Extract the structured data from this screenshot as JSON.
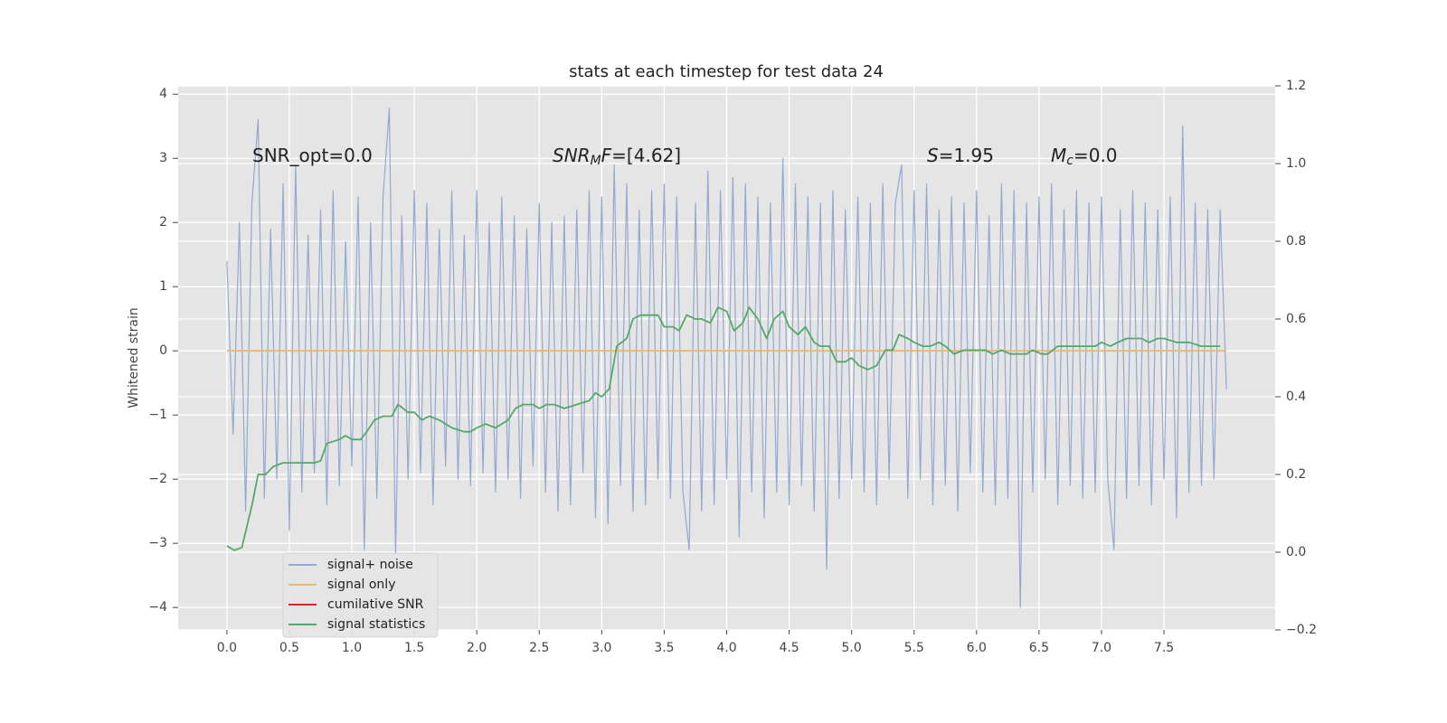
{
  "chart_data": {
    "type": "line",
    "title": "stats at each timestep for test data 24",
    "y_label": "Whitened strain",
    "xlim": [
      -0.39,
      8.39
    ],
    "ylim": [
      -4.35,
      4.13
    ],
    "y2lim": [
      -0.2,
      1.2
    ],
    "xticks": [
      {
        "value": 0,
        "label": "0.0"
      },
      0.5,
      {
        "value": 1,
        "label": "1.0"
      },
      1.5,
      {
        "value": 2,
        "label": "2.0"
      },
      2.5,
      {
        "value": 3,
        "label": "3.0"
      },
      3.5,
      {
        "value": 4,
        "label": "4.0"
      },
      4.5,
      {
        "value": 5,
        "label": "5.0"
      },
      5.5,
      {
        "value": 6,
        "label": "6.0"
      },
      6.5,
      {
        "value": 7,
        "label": "7.0"
      },
      7.5
    ],
    "yticks": [
      {
        "value": -4,
        "label": "−4"
      },
      {
        "value": -3,
        "label": "−3"
      },
      {
        "value": -2,
        "label": "−2"
      },
      {
        "value": -1,
        "label": "−1"
      },
      0,
      1,
      2,
      3,
      4
    ],
    "y2ticks": [
      {
        "value": -0.2,
        "label": "−0.2"
      },
      {
        "value": 0,
        "label": "0.0"
      },
      0.2,
      0.4,
      0.6,
      0.8,
      {
        "value": 1,
        "label": "1.0"
      },
      1.2
    ],
    "grid": true,
    "legend": "lower left",
    "annotations": [
      [
        {
          "text": "SNR_opt=0.0"
        }
      ],
      [
        {
          "text": "SNR",
          "style": "italic"
        },
        {
          "text": "M",
          "style": "italic-sub"
        },
        {
          "text": "F",
          "style": "italic"
        },
        {
          "text": "=[4.62]"
        }
      ],
      [
        {
          "text": "S",
          "style": "italic"
        },
        {
          "text": "=1.95"
        }
      ],
      [
        {
          "text": "M",
          "style": "italic"
        },
        {
          "text": "c",
          "style": "italic-sub"
        },
        {
          "text": "=0.0"
        }
      ]
    ],
    "series": [
      {
        "name": "signal+ noise",
        "color": "#93a9cf",
        "x": [
          0,
          0.05,
          0.1,
          0.15,
          0.2,
          0.25,
          0.3,
          0.35,
          0.4,
          0.45,
          0.5,
          0.55,
          0.6,
          0.65,
          0.7,
          0.75,
          0.8,
          0.85,
          0.9,
          0.95,
          1,
          1.05,
          1.1,
          1.15,
          1.2,
          1.25,
          1.3,
          1.35,
          1.4,
          1.45,
          1.5,
          1.55,
          1.6,
          1.65,
          1.7,
          1.75,
          1.8,
          1.85,
          1.9,
          1.95,
          2,
          2.05,
          2.1,
          2.15,
          2.2,
          2.25,
          2.3,
          2.35,
          2.4,
          2.45,
          2.5,
          2.55,
          2.6,
          2.65,
          2.7,
          2.75,
          2.8,
          2.85,
          2.9,
          2.95,
          3,
          3.05,
          3.1,
          3.15,
          3.2,
          3.25,
          3.3,
          3.35,
          3.4,
          3.45,
          3.5,
          3.55,
          3.6,
          3.65,
          3.7,
          3.75,
          3.8,
          3.85,
          3.9,
          3.95,
          4,
          4.05,
          4.1,
          4.15,
          4.2,
          4.25,
          4.3,
          4.35,
          4.4,
          4.45,
          4.5,
          4.55,
          4.6,
          4.65,
          4.7,
          4.75,
          4.8,
          4.85,
          4.9,
          4.95,
          5,
          5.05,
          5.1,
          5.15,
          5.2,
          5.25,
          5.3,
          5.35,
          5.4,
          5.45,
          5.5,
          5.55,
          5.6,
          5.65,
          5.7,
          5.75,
          5.8,
          5.85,
          5.9,
          5.95,
          6,
          6.05,
          6.1,
          6.15,
          6.2,
          6.25,
          6.3,
          6.35,
          6.4,
          6.45,
          6.5,
          6.55,
          6.6,
          6.65,
          6.7,
          6.75,
          6.8,
          6.85,
          6.9,
          6.95,
          7,
          7.05,
          7.1,
          7.15,
          7.2,
          7.25,
          7.3,
          7.35,
          7.4,
          7.45,
          7.5,
          7.55,
          7.6,
          7.65,
          7.7,
          7.75,
          7.8,
          7.85,
          7.9,
          7.95,
          8
        ],
        "values": [
          1.4,
          -1.3,
          2.0,
          -2.5,
          2.3,
          3.6,
          -2.3,
          1.9,
          -2.0,
          2.6,
          -2.8,
          2.9,
          -2.2,
          1.8,
          -1.9,
          2.2,
          -2.4,
          2.5,
          -2.1,
          1.7,
          -1.8,
          2.4,
          -3.1,
          2.0,
          -2.3,
          2.4,
          3.78,
          -3.2,
          2.1,
          -2.0,
          2.5,
          -1.9,
          2.3,
          -2.4,
          1.9,
          -1.8,
          2.5,
          -2.0,
          1.8,
          -2.1,
          2.5,
          -1.9,
          2.0,
          -2.2,
          2.4,
          -2.0,
          2.1,
          -2.3,
          1.9,
          -1.8,
          2.3,
          -2.2,
          2.0,
          -2.5,
          2.1,
          -2.4,
          2.2,
          -1.9,
          2.5,
          -2.6,
          2.4,
          -2.7,
          2.9,
          -2.1,
          2.6,
          -2.5,
          2.2,
          -2.4,
          2.5,
          -2.0,
          2.6,
          -2.3,
          2.4,
          -2.2,
          -3.1,
          2.3,
          -2.5,
          2.8,
          -2.4,
          2.5,
          -2.0,
          2.7,
          -2.9,
          2.6,
          -2.2,
          2.4,
          -2.6,
          2.3,
          -2.2,
          3.0,
          -2.4,
          2.6,
          -2.1,
          2.4,
          -2.5,
          2.3,
          -3.4,
          2.5,
          -2.3,
          2.2,
          -2.0,
          2.4,
          -2.2,
          2.3,
          -2.4,
          2.6,
          -2.0,
          2.3,
          2.9,
          -2.3,
          2.5,
          -2.0,
          2.6,
          -2.4,
          2.2,
          -2.1,
          2.4,
          -2.5,
          2.3,
          -1.9,
          2.5,
          -2.2,
          2.1,
          -2.4,
          2.6,
          -2.3,
          2.5,
          -4.0,
          2.3,
          -2.2,
          2.4,
          -2.0,
          2.6,
          -2.4,
          2.2,
          -2.1,
          2.5,
          -2.3,
          2.3,
          -2.2,
          2.4,
          -2.0,
          -3.1,
          2.2,
          -2.3,
          2.5,
          -2.1,
          2.3,
          -2.4,
          2.2,
          -2.0,
          2.4,
          -2.6,
          3.5,
          -2.2,
          2.3,
          -2.1,
          2.2,
          -2.0,
          2.2,
          -0.6
        ]
      },
      {
        "name": "signal only",
        "color": "#e9b96e",
        "x": [
          0,
          8
        ],
        "values": [
          0,
          0
        ]
      },
      {
        "name": "cumilative SNR",
        "color": "#d62728",
        "x": [],
        "values": []
      },
      {
        "name": "signal statistics",
        "color": "#55a868",
        "axis": "y2",
        "x": [
          0,
          0.06,
          0.12,
          0.2,
          0.25,
          0.31,
          0.37,
          0.45,
          0.6,
          0.7,
          0.75,
          0.8,
          0.9,
          0.95,
          1.0,
          1.07,
          1.12,
          1.18,
          1.25,
          1.32,
          1.37,
          1.45,
          1.5,
          1.56,
          1.62,
          1.7,
          1.8,
          1.9,
          1.95,
          2.0,
          2.07,
          2.15,
          2.25,
          2.31,
          2.37,
          2.45,
          2.5,
          2.56,
          2.62,
          2.7,
          2.8,
          2.9,
          2.95,
          3.0,
          3.06,
          3.12,
          3.2,
          3.25,
          3.31,
          3.37,
          3.45,
          3.5,
          3.57,
          3.62,
          3.68,
          3.75,
          3.8,
          3.87,
          3.93,
          4.0,
          4.06,
          4.13,
          4.18,
          4.25,
          4.32,
          4.38,
          4.45,
          4.5,
          4.57,
          4.63,
          4.7,
          4.75,
          4.82,
          4.88,
          4.95,
          5.0,
          5.06,
          5.13,
          5.2,
          5.27,
          5.33,
          5.38,
          5.45,
          5.5,
          5.57,
          5.63,
          5.7,
          5.75,
          5.82,
          5.9,
          6.0,
          6.07,
          6.13,
          6.2,
          6.27,
          6.33,
          6.4,
          6.45,
          6.52,
          6.57,
          6.65,
          6.72,
          6.8,
          6.87,
          6.95,
          7.0,
          7.07,
          7.13,
          7.2,
          7.27,
          7.32,
          7.38,
          7.45,
          7.5,
          7.6,
          7.7,
          7.8,
          7.9,
          7.95
        ],
        "values": [
          0.016,
          0.005,
          0.012,
          0.12,
          0.2,
          0.2,
          0.22,
          0.23,
          0.23,
          0.23,
          0.235,
          0.28,
          0.29,
          0.3,
          0.29,
          0.29,
          0.31,
          0.34,
          0.35,
          0.35,
          0.38,
          0.36,
          0.36,
          0.34,
          0.35,
          0.34,
          0.32,
          0.31,
          0.31,
          0.32,
          0.33,
          0.32,
          0.34,
          0.37,
          0.38,
          0.38,
          0.37,
          0.38,
          0.38,
          0.37,
          0.38,
          0.39,
          0.41,
          0.4,
          0.42,
          0.53,
          0.55,
          0.6,
          0.61,
          0.61,
          0.61,
          0.58,
          0.58,
          0.57,
          0.61,
          0.6,
          0.6,
          0.59,
          0.63,
          0.62,
          0.57,
          0.59,
          0.63,
          0.6,
          0.55,
          0.6,
          0.62,
          0.58,
          0.56,
          0.58,
          0.54,
          0.53,
          0.53,
          0.49,
          0.49,
          0.5,
          0.48,
          0.47,
          0.48,
          0.52,
          0.52,
          0.56,
          0.55,
          0.54,
          0.53,
          0.53,
          0.54,
          0.53,
          0.51,
          0.52,
          0.52,
          0.52,
          0.51,
          0.52,
          0.51,
          0.51,
          0.51,
          0.52,
          0.51,
          0.51,
          0.53,
          0.53,
          0.53,
          0.53,
          0.53,
          0.54,
          0.53,
          0.54,
          0.55,
          0.55,
          0.55,
          0.54,
          0.55,
          0.55,
          0.54,
          0.54,
          0.53,
          0.53,
          0.53
        ]
      }
    ]
  }
}
